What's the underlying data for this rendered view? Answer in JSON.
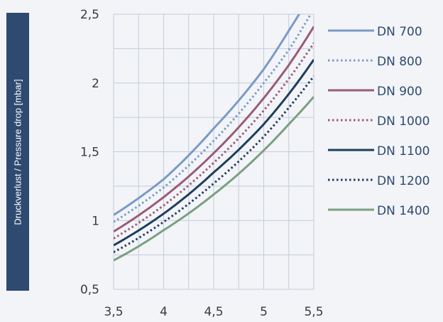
{
  "chart_data": {
    "type": "line",
    "title": "",
    "xlabel": "",
    "ylabel": "Druckverlust / Pressure drop [mbar]",
    "xlim": [
      3.5,
      5.5
    ],
    "ylim": [
      0.5,
      2.5
    ],
    "x_ticks": [
      "3,5",
      "4",
      "4,5",
      "5",
      "5,5"
    ],
    "y_ticks": [
      "0,5",
      "1",
      "1,5",
      "2",
      "2,5"
    ],
    "grid": true,
    "legend_position": "right",
    "series": [
      {
        "name": "DN 700",
        "color": "#7b9ac7",
        "dash": "solid",
        "x": [
          3.5,
          4,
          4.5,
          5,
          5.25,
          5.5
        ],
        "y": [
          1.04,
          1.3,
          1.67,
          2.1,
          2.38,
          2.68
        ]
      },
      {
        "name": "DN 800",
        "color": "#7b9ac7",
        "dash": "dotted",
        "x": [
          3.5,
          4,
          4.5,
          5,
          5.25,
          5.5
        ],
        "y": [
          0.99,
          1.24,
          1.58,
          2.0,
          2.24,
          2.54
        ]
      },
      {
        "name": "DN 900",
        "color": "#9a5b77",
        "dash": "solid",
        "x": [
          3.5,
          4,
          4.5,
          5,
          5.25,
          5.5
        ],
        "y": [
          0.92,
          1.17,
          1.49,
          1.89,
          2.13,
          2.41
        ]
      },
      {
        "name": "DN 1000",
        "color": "#9a5b77",
        "dash": "dotted",
        "x": [
          3.5,
          4,
          4.5,
          5,
          5.25,
          5.5
        ],
        "y": [
          0.87,
          1.11,
          1.42,
          1.8,
          2.03,
          2.29
        ]
      },
      {
        "name": "DN 1100",
        "color": "#1f3d5c",
        "dash": "solid",
        "x": [
          3.5,
          4,
          4.5,
          5,
          5.25,
          5.5
        ],
        "y": [
          0.82,
          1.05,
          1.35,
          1.7,
          1.92,
          2.17
        ]
      },
      {
        "name": "DN 1200",
        "color": "#1f3d5c",
        "dash": "dotted",
        "x": [
          3.5,
          4,
          4.5,
          5,
          5.25,
          5.5
        ],
        "y": [
          0.77,
          0.99,
          1.27,
          1.61,
          1.82,
          2.05
        ]
      },
      {
        "name": "DN 1400",
        "color": "#7c9f82",
        "dash": "solid",
        "x": [
          3.5,
          4,
          4.5,
          5,
          5.25,
          5.5
        ],
        "y": [
          0.71,
          0.93,
          1.19,
          1.51,
          1.7,
          1.9
        ]
      }
    ]
  }
}
